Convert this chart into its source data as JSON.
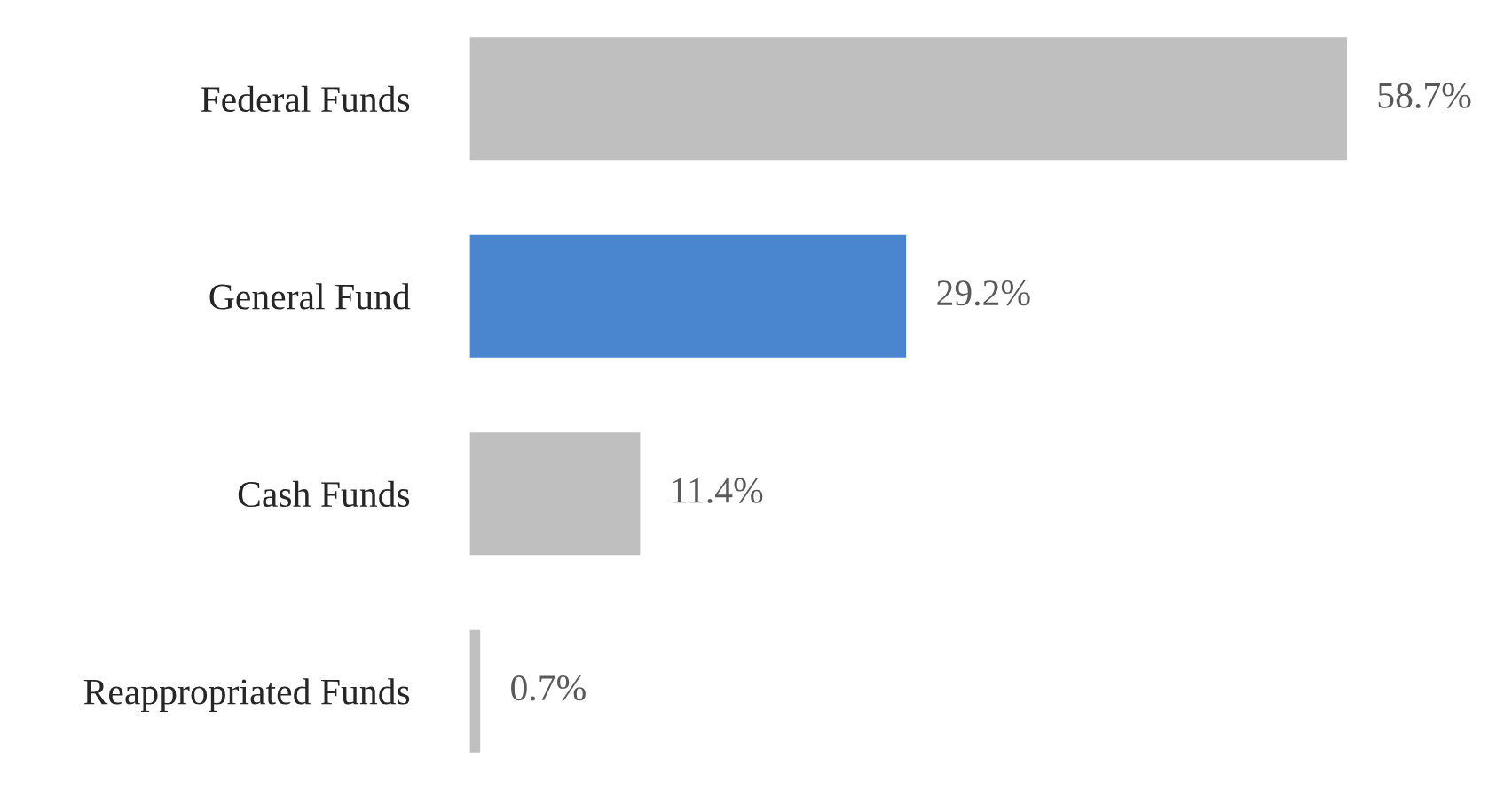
{
  "chart_data": {
    "type": "bar",
    "orientation": "horizontal",
    "categories": [
      "Federal Funds",
      "General Fund",
      "Cash Funds",
      "Reappropriated Funds"
    ],
    "values": [
      58.7,
      29.2,
      11.4,
      0.7
    ],
    "colors": [
      "#bfbfbf",
      "#4a86d0",
      "#bfbfbf",
      "#bfbfbf"
    ],
    "value_labels": [
      "58.7%",
      "29.2%",
      "11.4%",
      "0.7%"
    ],
    "grid": false,
    "legend": false,
    "tick_labels": "y"
  }
}
